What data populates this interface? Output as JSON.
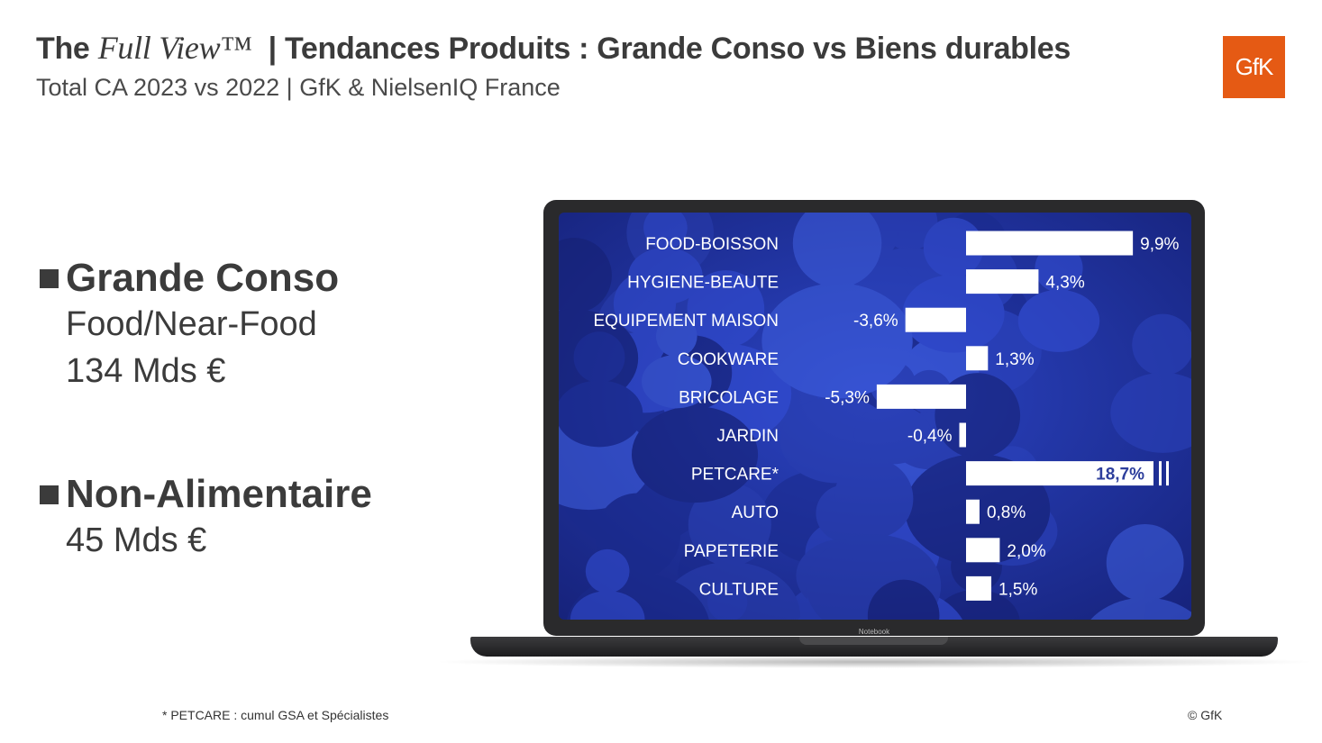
{
  "header": {
    "title_prefix": "The",
    "title_italic": "Full View™",
    "title_rest": "| Tendances Produits : Grande Conso vs Biens durables",
    "subtitle": "Total CA 2023 vs 2022 | GfK & NielsenIQ France",
    "logo_text": "GfK"
  },
  "segments": [
    {
      "title": "Grande Conso",
      "lines": [
        "Food/Near-Food",
        "134 Mds €"
      ]
    },
    {
      "title": "Non-Alimentaire",
      "lines": [
        "45 Mds €"
      ]
    }
  ],
  "laptop": {
    "brand": "Notebook"
  },
  "chart_data": {
    "type": "bar",
    "orientation": "horizontal",
    "categories": [
      "FOOD-BOISSON",
      "HYGIENE-BEAUTE",
      "EQUIPEMENT MAISON",
      "COOKWARE",
      "BRICOLAGE",
      "JARDIN",
      "PETCARE*",
      "AUTO",
      "PAPETERIE",
      "CULTURE"
    ],
    "values": [
      9.9,
      4.3,
      -3.6,
      1.3,
      -5.3,
      -0.4,
      18.7,
      0.8,
      2.0,
      1.5
    ],
    "value_labels": [
      "9,9%",
      "4,3%",
      "-3,6%",
      "1,3%",
      "-5,3%",
      "-0,4%",
      "18,7%",
      "0,8%",
      "2,0%",
      "1,5%"
    ],
    "broken_axis_category": "PETCARE*",
    "bar_color": "#ffffff",
    "highlight_label_color": "#2d3e9c",
    "background_color": "#2235a8"
  },
  "footer": {
    "footnote": "* PETCARE : cumul GSA et Spécialistes",
    "copyright": "© GfK"
  }
}
